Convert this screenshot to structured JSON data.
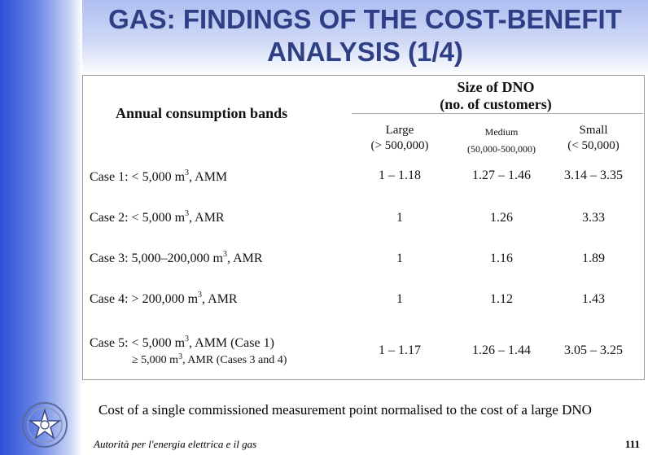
{
  "slide": {
    "title_line1": "GAS: FINDINGS OF THE COST-BENEFIT",
    "title_line2": "ANALYSIS (1/4)",
    "footnote": "Cost of a single commissioned measurement point normalised to the cost of a large DNO",
    "authority": "Autorità per l'energia elettrica e il gas",
    "page_number": "111"
  },
  "table": {
    "bands_header": "Annual consumption bands",
    "size_header_line1": "Size of DNO",
    "size_header_line2": "(no. of customers)",
    "columns": [
      {
        "name": "Large",
        "range": "(> 500,000)"
      },
      {
        "name": "Medium",
        "range": "(50,000-500,000)"
      },
      {
        "name": "Small",
        "range": "(< 50,000)"
      }
    ],
    "rows": [
      {
        "label": "Case 1:  < 5,000 m",
        "sup": "3",
        "suffix": ",  AMM",
        "values": [
          "1 – 1.18",
          "1.27 – 1.46",
          "3.14 – 3.35"
        ]
      },
      {
        "label": "Case 2:  < 5,000 m",
        "sup": "3",
        "suffix": ",  AMR",
        "values": [
          "1",
          "1.26",
          "3.33"
        ]
      },
      {
        "label": "Case 3:  5,000–200,000 m",
        "sup": "3",
        "suffix": ",  AMR",
        "values": [
          "1",
          "1.16",
          "1.89"
        ]
      },
      {
        "label": "Case 4:  > 200,000 m",
        "sup": "3",
        "suffix": ",  AMR",
        "values": [
          "1",
          "1.12",
          "1.43"
        ]
      },
      {
        "label": "Case 5: < 5,000 m",
        "sup": "3",
        "suffix": ",  AMM (Case 1)",
        "label2": "≥ 5,000 m",
        "sup2": "3",
        "suffix2": ",  AMR  (Cases 3 and 4)",
        "values": [
          "1 – 1.17",
          "1.26 – 1.44",
          "3.05 – 3.25"
        ]
      }
    ]
  },
  "colors": {
    "sidebar_blue": "#2d4fd6",
    "title_color": "#2f3f86"
  },
  "icons": {
    "emblem": "italian-republic-emblem-icon"
  }
}
